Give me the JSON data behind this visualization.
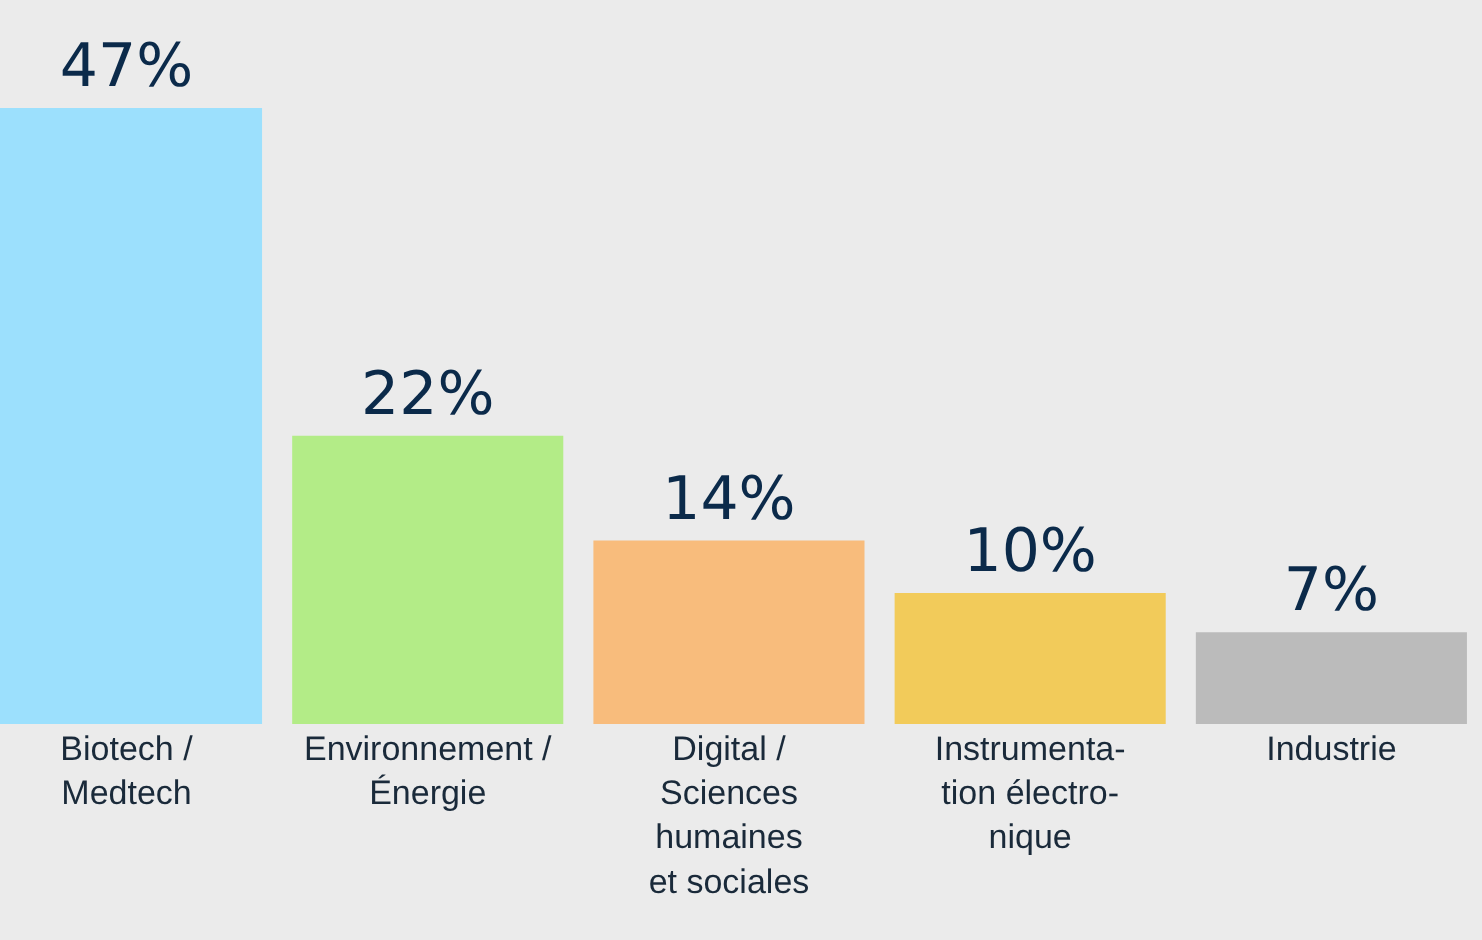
{
  "chart_data": {
    "type": "bar",
    "categories": [
      "Biotech /\nMedtech",
      "Environnement /\nÉnergie",
      "Digital /\nSciences\nhumaines\net sociales",
      "Instrumenta-\ntion électro-\nnique",
      "Industrie"
    ],
    "values": [
      47,
      22,
      14,
      10,
      7
    ],
    "colors": [
      "#9ce0fd",
      "#b3ec87",
      "#f8bc7c",
      "#f2cb5a",
      "#bbbbbb"
    ],
    "value_labels": [
      "47%",
      "22%",
      "14%",
      "10%",
      "7%"
    ],
    "grid": false,
    "legend": false
  }
}
